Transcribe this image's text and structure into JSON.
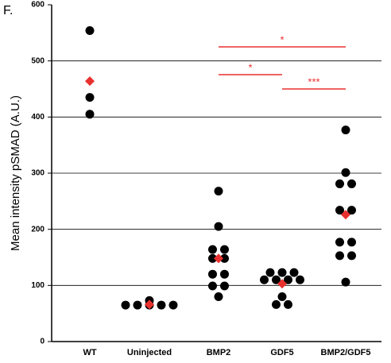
{
  "chart_data": {
    "type": "dot",
    "panel_label": "F.",
    "y_label": "Mean intensity pSMAD (A.U.)",
    "categories": [
      "WT",
      "Uninjected",
      "BMP2",
      "GDF5",
      "BMP2/GDF5"
    ],
    "points": [
      [
        554,
        435,
        405
      ],
      [
        65,
        65,
        65,
        65,
        65,
        73
      ],
      [
        268,
        205,
        164,
        164,
        148,
        148,
        120,
        120,
        99,
        99,
        80
      ],
      [
        123,
        123,
        123,
        110,
        110,
        110,
        110,
        80,
        66,
        66
      ],
      [
        377,
        301,
        281,
        281,
        234,
        234,
        177,
        177,
        153,
        153,
        106
      ]
    ],
    "point_color": "#000000",
    "means": [
      464,
      66,
      148,
      103,
      226
    ],
    "mean_color": "#e8312f",
    "ylim": [
      0,
      600
    ],
    "yticks": [
      0,
      100,
      200,
      300,
      400,
      500,
      600
    ],
    "grid": true,
    "annotations": [
      {
        "from": 2,
        "to": 4,
        "label": "*"
      },
      {
        "from": 2,
        "to": 3,
        "label": "*"
      },
      {
        "from": 3,
        "to": 4,
        "label": "***"
      }
    ],
    "annotation_color": "#e8312f"
  }
}
